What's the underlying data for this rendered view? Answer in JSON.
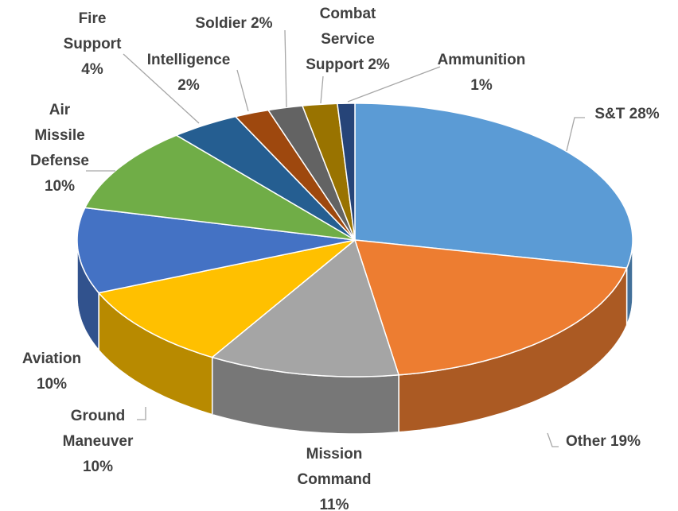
{
  "chart_data": {
    "type": "pie3d",
    "categories": [
      "S&T",
      "Other",
      "Mission Command",
      "Ground Maneuver",
      "Aviation",
      "Air Missile Defense",
      "Fire Support",
      "Intelligence",
      "Soldier",
      "Combat Service Support",
      "Ammunition"
    ],
    "values": [
      28,
      19,
      11,
      10,
      10,
      10,
      4,
      2,
      2,
      2,
      1
    ],
    "value_labels": [
      "28%",
      "19%",
      "11%",
      "10%",
      "10%",
      "10%",
      "4%",
      "2%",
      "2%",
      "2%",
      "1%"
    ],
    "colors": [
      "#5b9bd5",
      "#ed7d31",
      "#a5a5a5",
      "#ffc000",
      "#4472c4",
      "#70ad47",
      "#255e91",
      "#9e480e",
      "#636363",
      "#997300",
      "#264478"
    ]
  }
}
